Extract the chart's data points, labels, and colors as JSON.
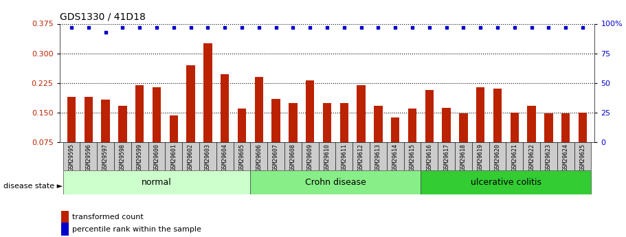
{
  "title": "GDS1330 / 41D18",
  "samples": [
    "GSM29595",
    "GSM29596",
    "GSM29597",
    "GSM29598",
    "GSM29599",
    "GSM29600",
    "GSM29601",
    "GSM29602",
    "GSM29603",
    "GSM29604",
    "GSM29605",
    "GSM29606",
    "GSM29607",
    "GSM29608",
    "GSM29609",
    "GSM29610",
    "GSM29611",
    "GSM29612",
    "GSM29613",
    "GSM29614",
    "GSM29615",
    "GSM29616",
    "GSM29617",
    "GSM29618",
    "GSM29619",
    "GSM29620",
    "GSM29621",
    "GSM29622",
    "GSM29623",
    "GSM29624",
    "GSM29625"
  ],
  "bar_values": [
    0.19,
    0.19,
    0.182,
    0.168,
    0.22,
    0.215,
    0.142,
    0.27,
    0.325,
    0.248,
    0.16,
    0.24,
    0.185,
    0.175,
    0.232,
    0.175,
    0.175,
    0.22,
    0.168,
    0.137,
    0.16,
    0.208,
    0.162,
    0.148,
    0.215,
    0.21,
    0.15,
    0.168,
    0.148,
    0.148,
    0.15
  ],
  "percentile_values": [
    97,
    97,
    93,
    97,
    97,
    97,
    97,
    97,
    97,
    97,
    97,
    97,
    97,
    97,
    97,
    97,
    97,
    97,
    97,
    97,
    97,
    97,
    97,
    97,
    97,
    97,
    97,
    97,
    97,
    97,
    97
  ],
  "bar_color": "#bb2200",
  "percentile_color": "#0000cc",
  "ylim_left": [
    0.075,
    0.375
  ],
  "ylim_right": [
    0,
    100
  ],
  "yticks_left": [
    0.075,
    0.15,
    0.225,
    0.3,
    0.375
  ],
  "yticks_right": [
    0,
    25,
    50,
    75,
    100
  ],
  "ytick_right_labels": [
    "0",
    "25",
    "50",
    "75",
    "100%"
  ],
  "groups": [
    {
      "label": "normal",
      "start": 0,
      "end": 11,
      "color": "#ccffcc"
    },
    {
      "label": "Crohn disease",
      "start": 11,
      "end": 21,
      "color": "#88ee88"
    },
    {
      "label": "ulcerative colitis",
      "start": 21,
      "end": 31,
      "color": "#33cc33"
    }
  ],
  "disease_state_label": "disease state",
  "legend_bar_label": "transformed count",
  "legend_pct_label": "percentile rank within the sample",
  "plot_bg": "#ffffff",
  "fig_bg": "#ffffff",
  "tick_area_bg": "#cccccc"
}
